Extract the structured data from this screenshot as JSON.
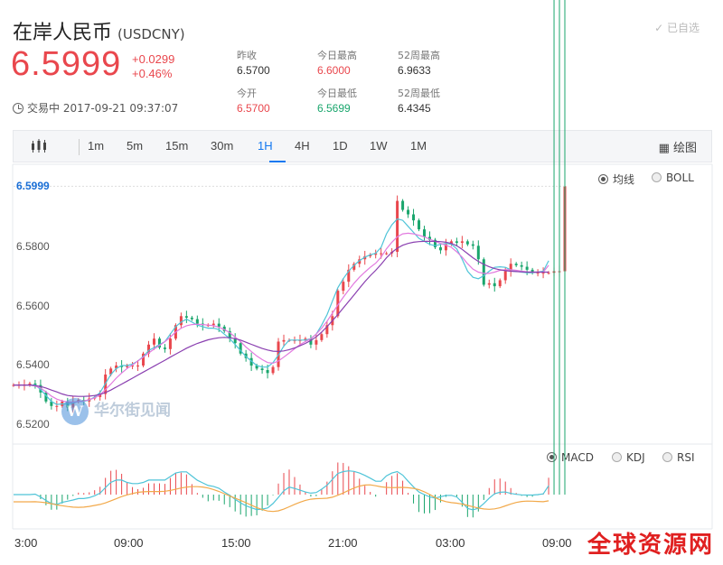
{
  "header": {
    "name": "在岸人民币",
    "code": "(USDCNY)",
    "watch_label": "已自选",
    "price": "6.5999",
    "change": "+0.0299",
    "change_pct": "+0.46%",
    "status": "交易中 2017-09-21 09:37:07"
  },
  "stats": [
    {
      "label": "昨收",
      "value": "6.5700"
    },
    {
      "label": "今日最高",
      "value": "6.6000"
    },
    {
      "label": "52周最高",
      "value": "6.9633"
    },
    {
      "label": "今开",
      "value": "6.5700"
    },
    {
      "label": "今日最低",
      "value": "6.5699"
    },
    {
      "label": "52周最低",
      "value": "6.4345"
    }
  ],
  "toolbar": {
    "periods": [
      "1m",
      "5m",
      "15m",
      "30m",
      "1H",
      "4H",
      "1D",
      "1W",
      "1M"
    ],
    "active": "1H",
    "draw_label": "绘图"
  },
  "overlay_options": [
    "均线",
    "BOLL"
  ],
  "indicator_options": [
    "MACD",
    "KDJ",
    "RSI"
  ],
  "watermark": "华尔街见闻",
  "site_mark": "全球资源网",
  "chart_data": {
    "type": "candlestick",
    "y_ticks": [
      "6.5999",
      "6.5800",
      "6.5600",
      "6.5400",
      "6.5200"
    ],
    "x_ticks": [
      "3:00",
      "09:00",
      "15:00",
      "21:00",
      "03:00",
      "09:00"
    ],
    "ylim": [
      6.518,
      6.6
    ],
    "close": [
      6.5335,
      6.5335,
      6.5335,
      6.534,
      6.5335,
      6.531,
      6.528,
      6.5265,
      6.5265,
      6.528,
      6.526,
      6.528,
      6.5285,
      6.528,
      6.529,
      6.5295,
      6.5305,
      6.537,
      6.539,
      6.54,
      6.5395,
      6.54,
      6.54,
      6.54,
      6.544,
      6.547,
      6.549,
      6.546,
      6.5455,
      6.549,
      6.5535,
      6.5565,
      6.556,
      6.5555,
      6.554,
      6.5535,
      6.5535,
      6.554,
      6.553,
      6.5515,
      6.549,
      6.5475,
      6.544,
      6.5425,
      6.54,
      6.539,
      6.5385,
      6.5375,
      6.5395,
      6.548,
      6.5485,
      6.5485,
      6.5485,
      6.5485,
      6.549,
      6.547,
      6.5485,
      6.5505,
      6.5535,
      6.5565,
      6.565,
      6.568,
      6.572,
      6.574,
      6.5755,
      6.5765,
      6.577,
      6.5775,
      6.5775,
      6.5775,
      6.578,
      6.595,
      6.592,
      6.5905,
      6.5885,
      6.5855,
      6.583,
      6.582,
      6.5795,
      6.5785,
      6.5805,
      6.5815,
      6.581,
      6.5815,
      6.5805,
      6.58,
      6.5755,
      6.567,
      6.5675,
      6.5665,
      6.5685,
      6.5715,
      6.574,
      6.5735,
      6.573,
      6.572,
      6.571,
      6.571,
      6.571,
      6.571,
      6.5715,
      6.5715,
      6.5999
    ],
    "ma_fast": [
      6.5335,
      6.5335,
      6.5335,
      6.5335,
      6.5335,
      6.532,
      6.53,
      6.528,
      6.527,
      6.5272,
      6.5272,
      6.5275,
      6.528,
      6.528,
      6.5285,
      6.5295,
      6.531,
      6.534,
      6.537,
      6.539,
      6.54,
      6.54,
      6.5405,
      6.5415,
      6.543,
      6.545,
      6.546,
      6.547,
      6.548,
      6.5505,
      6.553,
      6.5545,
      6.5555,
      6.5545,
      6.5535,
      6.553,
      6.5525,
      6.5525,
      6.552,
      6.5505,
      6.549,
      6.547,
      6.545,
      6.543,
      6.5415,
      6.54,
      6.5395,
      6.5395,
      6.541,
      6.5435,
      6.5465,
      6.5485,
      6.5485,
      6.5485,
      6.5485,
      6.549,
      6.5505,
      6.5535,
      6.557,
      6.5615,
      6.566,
      6.569,
      6.5715,
      6.5735,
      6.575,
      6.5762,
      6.577,
      6.5775,
      6.5795,
      6.584,
      6.587,
      6.589,
      6.5885,
      6.5865,
      6.5845,
      6.5825,
      6.5815,
      6.5805,
      6.58,
      6.5805,
      6.5808,
      6.5805,
      6.579,
      6.5755,
      6.5715,
      6.5695,
      6.569,
      6.57,
      6.5715,
      6.5728,
      6.573,
      6.5728,
      6.572,
      6.5715,
      6.5712,
      6.571,
      6.571,
      6.5712,
      6.5715,
      6.575
    ],
    "ma_mid": [
      6.5335,
      6.5335,
      6.5335,
      6.5335,
      6.5332,
      6.5325,
      6.5312,
      6.5298,
      6.5288,
      6.5282,
      6.5278,
      6.5278,
      6.528,
      6.5282,
      6.5286,
      6.5292,
      6.5302,
      6.532,
      6.5338,
      6.5358,
      6.5375,
      6.539,
      6.5402,
      6.5415,
      6.5428,
      6.5442,
      6.5455,
      6.5467,
      6.548,
      6.5495,
      6.5512,
      6.5525,
      6.5533,
      6.5537,
      6.5538,
      6.5537,
      6.5535,
      6.5533,
      6.5528,
      6.552,
      6.551,
      6.5495,
      6.548,
      6.5462,
      6.5447,
      6.5432,
      6.542,
      6.541,
      6.5408,
      6.5415,
      6.5428,
      6.5442,
      6.5456,
      6.547,
      6.548,
      6.549,
      6.5505,
      6.5525,
      6.5548,
      6.5575,
      6.5602,
      6.5628,
      6.5652,
      6.5675,
      6.5695,
      6.5712,
      6.5728,
      6.5742,
      6.5762,
      6.579,
      6.5812,
      6.583,
      6.584,
      6.5842,
      6.584,
      6.5835,
      6.583,
      6.5822,
      6.5815,
      6.5808,
      6.5802,
      6.5795,
      6.578,
      6.5762,
      6.574,
      6.5722,
      6.5712,
      6.5708,
      6.5708,
      6.5712,
      6.5718,
      6.572,
      6.572,
      6.5718,
      6.5715,
      6.5713,
      6.5712,
      6.5712,
      6.5712,
      6.5735
    ],
    "ma_slow": [
      6.5335,
      6.5335,
      6.5335,
      6.5335,
      6.5333,
      6.533,
      6.5325,
      6.5318,
      6.5312,
      6.5305,
      6.53,
      6.5298,
      6.5297,
      6.5297,
      6.5298,
      6.53,
      6.5304,
      6.531,
      6.5318,
      6.5328,
      6.5338,
      6.5348,
      6.5358,
      6.5368,
      6.5378,
      6.5388,
      6.5398,
      6.5408,
      6.5418,
      6.5428,
      6.5438,
      6.5448,
      6.5458,
      6.5466,
      6.5474,
      6.548,
      6.5486,
      6.549,
      6.5493,
      6.5494,
      6.5493,
      6.549,
      6.5485,
      6.5478,
      6.5471,
      6.5464,
      6.5457,
      6.5452,
      6.5448,
      6.5447,
      6.5449,
      6.5453,
      6.5459,
      6.5466,
      6.5474,
      6.5484,
      6.5496,
      6.5512,
      6.553,
      6.555,
      6.557,
      6.5592,
      6.5614,
      6.5636,
      6.5658,
      6.568,
      6.57,
      6.5718,
      6.5738,
      6.576,
      6.5778,
      6.5792,
      6.5802,
      6.5808,
      6.5812,
      6.5814,
      6.5815,
      6.5815,
      6.5815,
      6.5814,
      6.5812,
      6.5808,
      6.58,
      6.5788,
      6.5774,
      6.576,
      6.5748,
      6.5738,
      6.573,
      6.5724,
      6.572,
      6.5717,
      6.5715,
      6.5714,
      6.5713,
      6.5712,
      6.5712,
      6.5712,
      6.5712,
      6.5712
    ]
  }
}
